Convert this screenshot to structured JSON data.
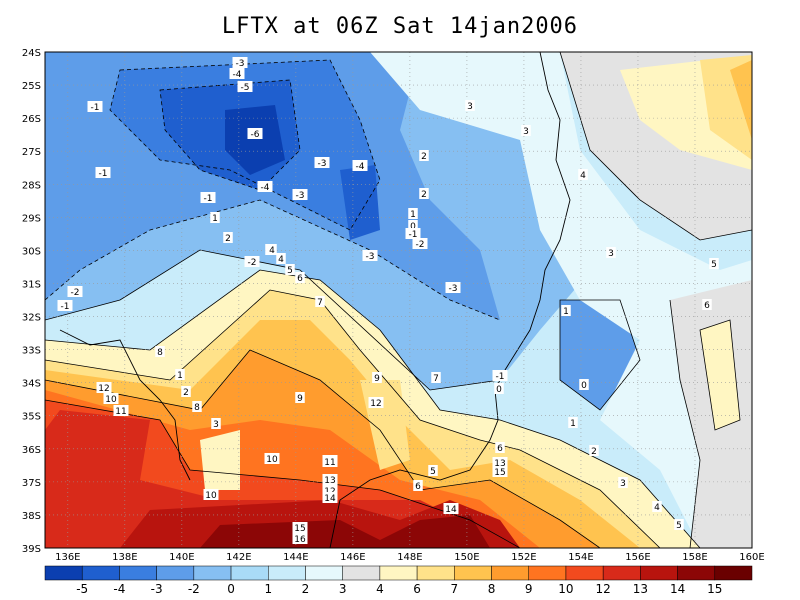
{
  "title": "LFTX at 06Z Sat 14jan2006",
  "map": {
    "lon_labels": [
      "136E",
      "138E",
      "140E",
      "142E",
      "144E",
      "146E",
      "148E",
      "150E",
      "152E",
      "154E",
      "156E",
      "158E",
      "160E"
    ],
    "lat_labels": [
      "24S",
      "25S",
      "26S",
      "27S",
      "28S",
      "29S",
      "30S",
      "31S",
      "32S",
      "33S",
      "34S",
      "35S",
      "36S",
      "37S",
      "38S",
      "39S"
    ]
  },
  "colorbar": {
    "labels": [
      "-5",
      "-4",
      "-3",
      "-2",
      "0",
      "1",
      "2",
      "3",
      "4",
      "6",
      "7",
      "8",
      "9",
      "10",
      "12",
      "13",
      "14",
      "15"
    ],
    "colors": [
      "#0b3fb0",
      "#1f5fcf",
      "#3a7ee0",
      "#5e9de9",
      "#86bff2",
      "#a9dbf7",
      "#c9ecfa",
      "#e6f8fc",
      "#e3e3e3",
      "#fff6c2",
      "#ffe28a",
      "#ffc34f",
      "#ff9c2e",
      "#ff7420",
      "#f24a1e",
      "#d82a1a",
      "#b8140e",
      "#8c0606",
      "#6a0000"
    ]
  },
  "contour_labels": [
    "-3",
    "-4",
    "-5",
    "-6",
    "-1",
    "-3",
    "-4",
    "-4",
    "-3",
    "-1",
    "-1",
    "1",
    "-3",
    "-2",
    "-1",
    "-2",
    "2",
    "3",
    "4",
    "5",
    "6",
    "7",
    "8",
    "1",
    "2",
    "3",
    "9",
    "10",
    "11",
    "12",
    "10",
    "11",
    "12",
    "13",
    "14",
    "15",
    "16",
    "3",
    "3",
    "2",
    "2",
    "3",
    "4",
    "4",
    "3",
    "5",
    "6",
    "1",
    "0",
    "-1",
    "0",
    "-3",
    "-2",
    "1",
    "0",
    "-1",
    "1",
    "2",
    "3",
    "4",
    "5",
    "6",
    "13",
    "14",
    "15",
    "11",
    "12",
    "10",
    "8",
    "9",
    "5",
    "6",
    "7"
  ],
  "colors": {
    "background": "#ffffff",
    "frame": "#000000"
  }
}
